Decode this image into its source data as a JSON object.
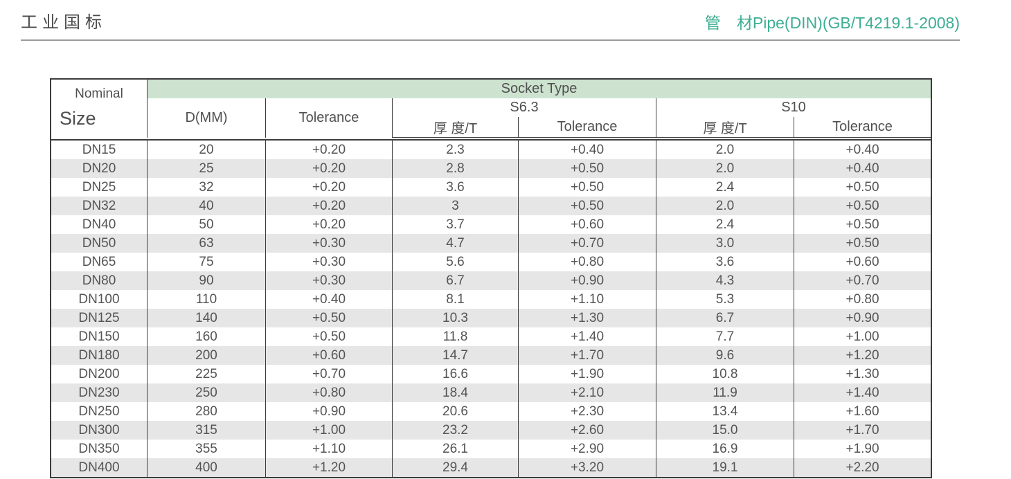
{
  "header": {
    "title": "工业国标",
    "subtitle": "管　材Pipe(DIN)(GB/T4219.1-2008)",
    "accent_color": "#3dae93"
  },
  "table": {
    "nominal_label_line1": "Nominal",
    "nominal_label_line2": "Size",
    "socket_type_label": "Socket Type",
    "d_mm_label": "D(MM)",
    "tolerance_label": "Tolerance",
    "s63_label": "S6.3",
    "s10_label": "S10",
    "s63_thickness_label": "厚 度/T",
    "s63_tolerance_label": "Tolerance",
    "s10_thickness_label": "厚 度/T",
    "s10_tolerance_label": "Tolerance",
    "socket_header_bg": "#cde3cf",
    "stripe_color": "#e6e6e6",
    "rows": [
      [
        "DN15",
        "20",
        "+0.20",
        "2.3",
        "+0.40",
        "2.0",
        "+0.40"
      ],
      [
        "DN20",
        "25",
        "+0.20",
        "2.8",
        "+0.50",
        "2.0",
        "+0.40"
      ],
      [
        "DN25",
        "32",
        "+0.20",
        "3.6",
        "+0.50",
        "2.4",
        "+0.50"
      ],
      [
        "DN32",
        "40",
        "+0.20",
        "3",
        "+0.50",
        "2.0",
        "+0.50"
      ],
      [
        "DN40",
        "50",
        "+0.20",
        "3.7",
        "+0.60",
        "2.4",
        "+0.50"
      ],
      [
        "DN50",
        "63",
        "+0.30",
        "4.7",
        "+0.70",
        "3.0",
        "+0.50"
      ],
      [
        "DN65",
        "75",
        "+0.30",
        "5.6",
        "+0.80",
        "3.6",
        "+0.60"
      ],
      [
        "DN80",
        "90",
        "+0.30",
        "6.7",
        "+0.90",
        "4.3",
        "+0.70"
      ],
      [
        "DN100",
        "110",
        "+0.40",
        "8.1",
        "+1.10",
        "5.3",
        "+0.80"
      ],
      [
        "DN125",
        "140",
        "+0.50",
        "10.3",
        "+1.30",
        "6.7",
        "+0.90"
      ],
      [
        "DN150",
        "160",
        "+0.50",
        "11.8",
        "+1.40",
        "7.7",
        "+1.00"
      ],
      [
        "DN180",
        "200",
        "+0.60",
        "14.7",
        "+1.70",
        "9.6",
        "+1.20"
      ],
      [
        "DN200",
        "225",
        "+0.70",
        "16.6",
        "+1.90",
        "10.8",
        "+1.30"
      ],
      [
        "DN230",
        "250",
        "+0.80",
        "18.4",
        "+2.10",
        "11.9",
        "+1.40"
      ],
      [
        "DN250",
        "280",
        "+0.90",
        "20.6",
        "+2.30",
        "13.4",
        "+1.60"
      ],
      [
        "DN300",
        "315",
        "+1.00",
        "23.2",
        "+2.60",
        "15.0",
        "+1.70"
      ],
      [
        "DN350",
        "355",
        "+1.10",
        "26.1",
        "+2.90",
        "16.9",
        "+1.90"
      ],
      [
        "DN400",
        "400",
        "+1.20",
        "29.4",
        "+3.20",
        "19.1",
        "+2.20"
      ]
    ]
  }
}
